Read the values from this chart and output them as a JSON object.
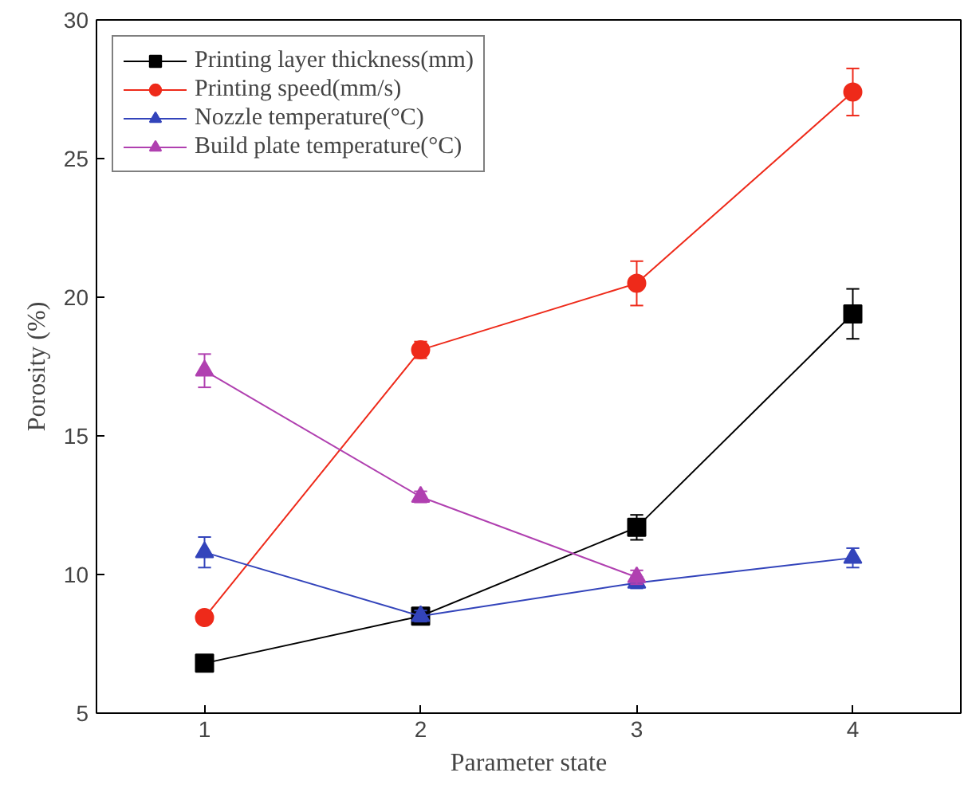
{
  "chart_data": {
    "type": "line",
    "xlabel": "Parameter state",
    "ylabel": "Porosity (%)",
    "x": [
      1,
      2,
      3,
      4
    ],
    "xlim": [
      0.5,
      4.5
    ],
    "xticks": [
      1,
      2,
      3,
      4
    ],
    "ylim": [
      5,
      30
    ],
    "yticks": [
      5,
      10,
      15,
      20,
      25,
      30
    ],
    "grid": false,
    "legend": "top left",
    "series": [
      {
        "name": "Printing layer thickness(mm)",
        "color": "#000000",
        "marker": "square",
        "values": [
          6.8,
          8.5,
          11.7,
          19.4
        ],
        "errors": [
          0.2,
          null,
          0.45,
          0.9
        ]
      },
      {
        "name": "Printing speed(mm/s)",
        "color": "#ee2a1a",
        "marker": "circle",
        "values": [
          8.45,
          18.1,
          20.5,
          27.4
        ],
        "errors": [
          null,
          0.3,
          0.8,
          0.85
        ]
      },
      {
        "name": "Nozzle temperature(°C)",
        "color": "#3344bb",
        "marker": "triangle",
        "values": [
          10.8,
          8.5,
          9.7,
          10.6
        ],
        "errors": [
          0.55,
          0.2,
          0.2,
          0.35
        ]
      },
      {
        "name": "Build plate temperature(°C)",
        "color": "#b040b0",
        "marker": "triangle",
        "values": [
          17.35,
          12.8,
          9.9,
          null
        ],
        "errors": [
          0.6,
          0.2,
          0.25,
          null
        ]
      }
    ]
  }
}
